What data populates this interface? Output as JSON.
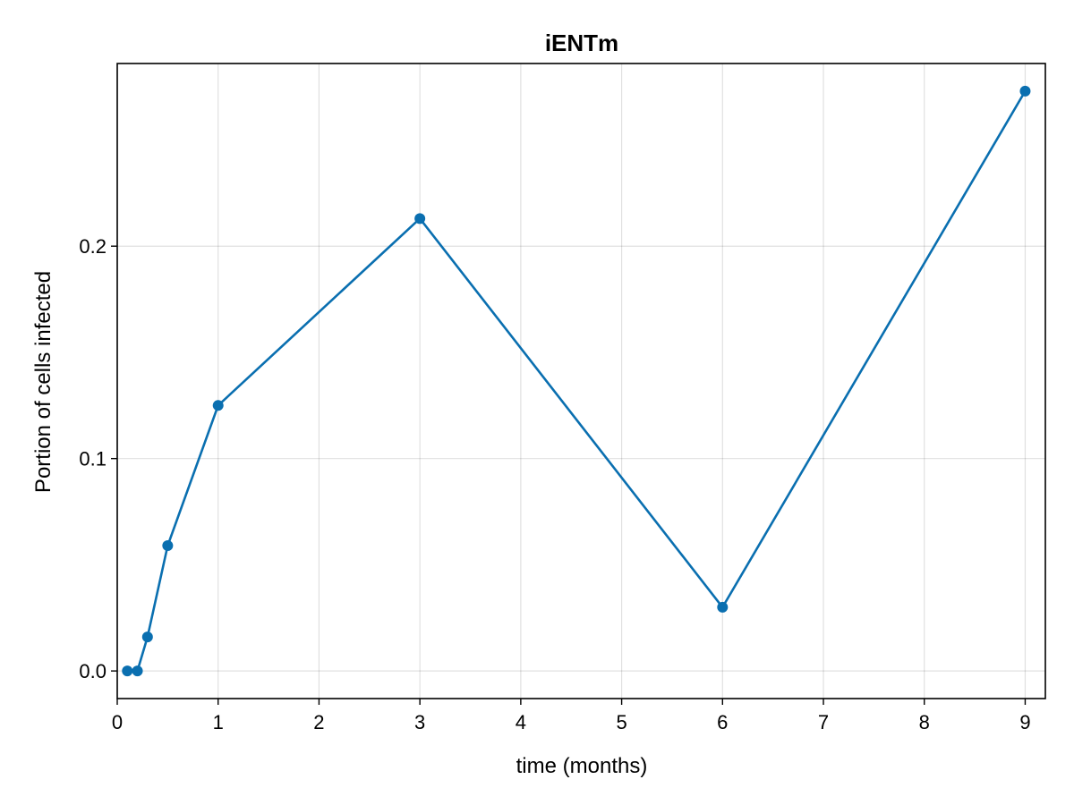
{
  "chart_data": {
    "type": "line",
    "title": "iENTm",
    "xlabel": "time (months)",
    "ylabel": "Portion of cells infected",
    "xlim": [
      0,
      9.2
    ],
    "ylim": [
      -0.013,
      0.286
    ],
    "xticks": [
      0,
      1,
      2,
      3,
      4,
      5,
      6,
      7,
      8,
      9
    ],
    "xtick_labels": [
      "0",
      "1",
      "2",
      "3",
      "4",
      "5",
      "6",
      "7",
      "8",
      "9"
    ],
    "yticks": [
      0.0,
      0.1,
      0.2
    ],
    "ytick_labels": [
      "0.0",
      "0.1",
      "0.2"
    ],
    "grid": true,
    "legend": "none",
    "series": [
      {
        "color": "#0a6fb0",
        "markers": true,
        "x": [
          0.1,
          0.2,
          0.3,
          0.5,
          1,
          3,
          6,
          9
        ],
        "y": [
          0.0,
          0.0,
          0.016,
          0.059,
          0.125,
          0.213,
          0.03,
          0.273
        ]
      }
    ]
  }
}
